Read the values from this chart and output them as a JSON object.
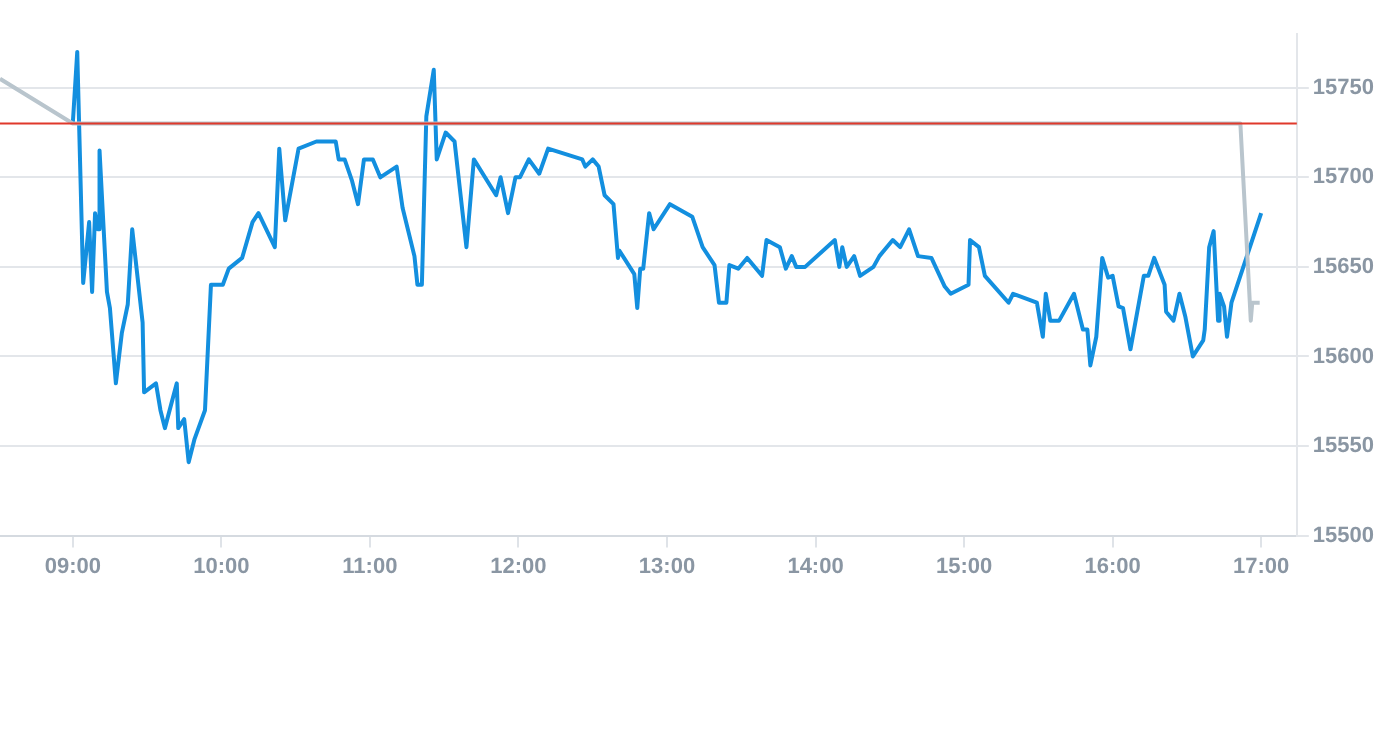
{
  "chart_data": {
    "type": "line",
    "xlim": [
      8.51,
      17.24
    ],
    "ylim": [
      15500,
      15780
    ],
    "xticks": [
      {
        "value": 9,
        "label": "09:00"
      },
      {
        "value": 10,
        "label": "10:00"
      },
      {
        "value": 11,
        "label": "11:00"
      },
      {
        "value": 12,
        "label": "12:00"
      },
      {
        "value": 13,
        "label": "13:00"
      },
      {
        "value": 14,
        "label": "14:00"
      },
      {
        "value": 15,
        "label": "15:00"
      },
      {
        "value": 16,
        "label": "16:00"
      },
      {
        "value": 17,
        "label": "17:00"
      }
    ],
    "yticks": [
      15500,
      15550,
      15600,
      15650,
      15700,
      15750
    ],
    "grid": "y",
    "legend": false,
    "marker": "none",
    "line_style": "solid",
    "ref_lines": [
      {
        "axis": "y",
        "value": 15730,
        "color": "#e0392b"
      }
    ],
    "series": [
      {
        "color": "#b9c5cd",
        "x": [
          8.51,
          9.0,
          16.86,
          16.93,
          16.94,
          16.99
        ],
        "values": [
          15755,
          15730,
          15730,
          15620,
          15630,
          15630
        ]
      },
      {
        "color": "#138fdf",
        "x": [
          9.0,
          9.03,
          9.07,
          9.11,
          9.13,
          9.15,
          9.17,
          9.18,
          9.23,
          9.25,
          9.29,
          9.33,
          9.37,
          9.4,
          9.47,
          9.48,
          9.56,
          9.59,
          9.62,
          9.7,
          9.71,
          9.75,
          9.78,
          9.82,
          9.89,
          9.93,
          10.01,
          10.05,
          10.14,
          10.21,
          10.25,
          10.36,
          10.39,
          10.43,
          10.52,
          10.64,
          10.77,
          10.79,
          10.83,
          10.88,
          10.92,
          10.96,
          11.02,
          11.07,
          11.18,
          11.22,
          11.3,
          11.32,
          11.35,
          11.38,
          11.43,
          11.45,
          11.51,
          11.57,
          11.65,
          11.7,
          11.85,
          11.88,
          11.93,
          11.98,
          12.01,
          12.07,
          12.14,
          12.2,
          12.43,
          12.45,
          12.5,
          12.54,
          12.58,
          12.64,
          12.67,
          12.68,
          12.78,
          12.8,
          12.82,
          12.84,
          12.88,
          12.91,
          13.02,
          13.17,
          13.24,
          13.32,
          13.35,
          13.4,
          13.42,
          13.48,
          13.54,
          13.64,
          13.67,
          13.76,
          13.8,
          13.84,
          13.87,
          13.93,
          14.13,
          14.16,
          14.18,
          14.21,
          14.26,
          14.3,
          14.39,
          14.43,
          14.52,
          14.57,
          14.63,
          14.69,
          14.78,
          14.87,
          14.91,
          15.03,
          15.04,
          15.1,
          15.14,
          15.3,
          15.33,
          15.49,
          15.53,
          15.55,
          15.58,
          15.64,
          15.74,
          15.8,
          15.83,
          15.85,
          15.89,
          15.93,
          15.97,
          16.0,
          16.04,
          16.07,
          16.12,
          16.21,
          16.24,
          16.28,
          16.35,
          16.36,
          16.41,
          16.45,
          16.49,
          16.54,
          16.61,
          16.62,
          16.65,
          16.68,
          16.71,
          16.72,
          16.75,
          16.77,
          16.8,
          17.0
        ],
        "values": [
          15730,
          15770,
          15641,
          15675,
          15636,
          15680,
          15671,
          15715,
          15636,
          15627,
          15585,
          15613,
          15629,
          15671,
          15619,
          15580,
          15585,
          15570,
          15560,
          15585,
          15560,
          15565,
          15541,
          15554,
          15570,
          15640,
          15640,
          15649,
          15655,
          15675,
          15680,
          15661,
          15716,
          15676,
          15716,
          15720,
          15720,
          15710,
          15710,
          15698,
          15685,
          15710,
          15710,
          15700,
          15706,
          15683,
          15656,
          15640,
          15640,
          15734,
          15760,
          15710,
          15725,
          15720,
          15661,
          15710,
          15690,
          15700,
          15680,
          15700,
          15700,
          15710,
          15702,
          15716,
          15710,
          15706,
          15710,
          15706,
          15690,
          15685,
          15655,
          15659,
          15646,
          15627,
          15649,
          15649,
          15680,
          15671,
          15685,
          15678,
          15661,
          15651,
          15630,
          15630,
          15651,
          15649,
          15655,
          15645,
          15665,
          15661,
          15649,
          15656,
          15650,
          15650,
          15665,
          15650,
          15661,
          15650,
          15656,
          15645,
          15650,
          15656,
          15665,
          15661,
          15671,
          15656,
          15655,
          15639,
          15635,
          15640,
          15665,
          15661,
          15645,
          15630,
          15635,
          15630,
          15611,
          15635,
          15620,
          15620,
          15635,
          15615,
          15615,
          15595,
          15611,
          15655,
          15644,
          15645,
          15628,
          15627,
          15604,
          15645,
          15645,
          15655,
          15640,
          15625,
          15620,
          15635,
          15622,
          15600,
          15609,
          15615,
          15661,
          15670,
          15620,
          15635,
          15628,
          15611,
          15630,
          15680
        ]
      }
    ]
  }
}
